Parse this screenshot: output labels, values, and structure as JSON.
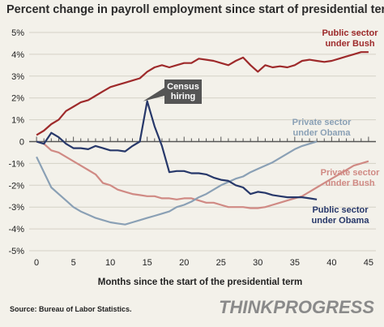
{
  "title": "Percent change in payroll employment since start of presidential term",
  "source": "Source: Bureau of Labor Statistics.",
  "logo_text": "THINKPROGRESS",
  "colors": {
    "bush_public": "#9e2a2b",
    "bush_private": "#d08a84",
    "obama_public": "#27386a",
    "obama_private": "#8aa0b5",
    "zero_line": "#555555",
    "callout_bg": "#555555"
  },
  "chart_data": {
    "type": "line",
    "title": "Percent change in payroll employment since start of presidential term",
    "xlabel": "Months since the start of the presidential term",
    "ylabel": "",
    "xlim": [
      -1,
      46
    ],
    "ylim": [
      -5,
      5
    ],
    "x_ticks": [
      0,
      5,
      10,
      15,
      20,
      25,
      30,
      35,
      40,
      45
    ],
    "y_ticks": [
      -5,
      -4,
      -3,
      -2,
      -1,
      0,
      1,
      2,
      3,
      4,
      5
    ],
    "y_tick_labels": [
      "-5%",
      "-4%",
      "-3%",
      "-2%",
      "-1%",
      "0",
      "1%",
      "2%",
      "3%",
      "4%",
      "5%"
    ],
    "grid": true,
    "series": [
      {
        "name": "Public sector under Bush",
        "color": "#9e2a2b",
        "label_lines": [
          "Public sector",
          "under Bush"
        ],
        "x": [
          0,
          1,
          2,
          3,
          4,
          5,
          6,
          7,
          8,
          9,
          10,
          11,
          12,
          13,
          14,
          15,
          16,
          17,
          18,
          19,
          20,
          21,
          22,
          23,
          24,
          25,
          26,
          27,
          28,
          29,
          30,
          31,
          32,
          33,
          34,
          35,
          36,
          37,
          38,
          39,
          40,
          41,
          42,
          43,
          44,
          45
        ],
        "y": [
          0.3,
          0.5,
          0.8,
          1.0,
          1.4,
          1.6,
          1.8,
          1.9,
          2.1,
          2.3,
          2.5,
          2.6,
          2.7,
          2.8,
          2.9,
          3.2,
          3.4,
          3.5,
          3.4,
          3.5,
          3.6,
          3.6,
          3.8,
          3.75,
          3.7,
          3.6,
          3.5,
          3.7,
          3.85,
          3.5,
          3.2,
          3.5,
          3.4,
          3.45,
          3.4,
          3.5,
          3.7,
          3.75,
          3.7,
          3.65,
          3.7,
          3.8,
          3.9,
          4.0,
          4.1,
          4.1
        ]
      },
      {
        "name": "Private sector under Bush",
        "color": "#d08a84",
        "label_lines": [
          "Private sector",
          "under Bush"
        ],
        "x": [
          0,
          1,
          2,
          3,
          4,
          5,
          6,
          7,
          8,
          9,
          10,
          11,
          12,
          13,
          14,
          15,
          16,
          17,
          18,
          19,
          20,
          21,
          22,
          23,
          24,
          25,
          26,
          27,
          28,
          29,
          30,
          31,
          32,
          33,
          34,
          35,
          36,
          37,
          38,
          39,
          40,
          41,
          42,
          43,
          44,
          45
        ],
        "y": [
          0,
          -0.1,
          -0.4,
          -0.5,
          -0.7,
          -0.9,
          -1.1,
          -1.3,
          -1.5,
          -1.9,
          -2.0,
          -2.2,
          -2.3,
          -2.4,
          -2.45,
          -2.5,
          -2.5,
          -2.6,
          -2.6,
          -2.65,
          -2.6,
          -2.6,
          -2.7,
          -2.8,
          -2.8,
          -2.9,
          -3.0,
          -3.0,
          -3.0,
          -3.05,
          -3.05,
          -3.0,
          -2.9,
          -2.8,
          -2.7,
          -2.6,
          -2.5,
          -2.3,
          -2.1,
          -1.9,
          -1.7,
          -1.5,
          -1.3,
          -1.1,
          -1.0,
          -0.9
        ]
      },
      {
        "name": "Private sector under Obama",
        "color": "#8aa0b5",
        "label_lines": [
          "Private sector",
          "under Obama"
        ],
        "x": [
          0,
          1,
          2,
          3,
          4,
          5,
          6,
          7,
          8,
          9,
          10,
          11,
          12,
          13,
          14,
          15,
          16,
          17,
          18,
          19,
          20,
          21,
          22,
          23,
          24,
          25,
          26,
          27,
          28,
          29,
          30,
          31,
          32,
          33,
          34,
          35,
          36,
          37,
          38
        ],
        "y": [
          -0.7,
          -1.4,
          -2.1,
          -2.4,
          -2.7,
          -3.0,
          -3.2,
          -3.35,
          -3.5,
          -3.6,
          -3.7,
          -3.75,
          -3.8,
          -3.7,
          -3.6,
          -3.5,
          -3.4,
          -3.3,
          -3.2,
          -3.0,
          -2.9,
          -2.75,
          -2.55,
          -2.4,
          -2.2,
          -2.0,
          -1.85,
          -1.7,
          -1.6,
          -1.4,
          -1.25,
          -1.1,
          -0.95,
          -0.75,
          -0.55,
          -0.35,
          -0.2,
          -0.1,
          0.0
        ]
      },
      {
        "name": "Public sector under Obama",
        "color": "#27386a",
        "label_lines": [
          "Public sector",
          "under Obama"
        ],
        "x": [
          0,
          1,
          2,
          3,
          4,
          5,
          6,
          7,
          8,
          9,
          10,
          11,
          12,
          13,
          14,
          15,
          16,
          17,
          18,
          19,
          20,
          21,
          22,
          23,
          24,
          25,
          26,
          27,
          28,
          29,
          30,
          31,
          32,
          33,
          34,
          35,
          36,
          37,
          38
        ],
        "y": [
          0,
          -0.1,
          0.4,
          0.2,
          -0.1,
          -0.3,
          -0.3,
          -0.35,
          -0.2,
          -0.3,
          -0.4,
          -0.4,
          -0.45,
          -0.2,
          0.0,
          1.85,
          0.7,
          -0.2,
          -1.4,
          -1.35,
          -1.35,
          -1.45,
          -1.45,
          -1.5,
          -1.65,
          -1.75,
          -1.8,
          -2.0,
          -2.1,
          -2.4,
          -2.3,
          -2.35,
          -2.45,
          -2.5,
          -2.55,
          -2.55,
          -2.55,
          -2.6,
          -2.65
        ]
      }
    ],
    "annotations": [
      {
        "text_lines": [
          "Census",
          "hiring"
        ],
        "target_x": 14,
        "target_y": 1.85
      }
    ]
  }
}
